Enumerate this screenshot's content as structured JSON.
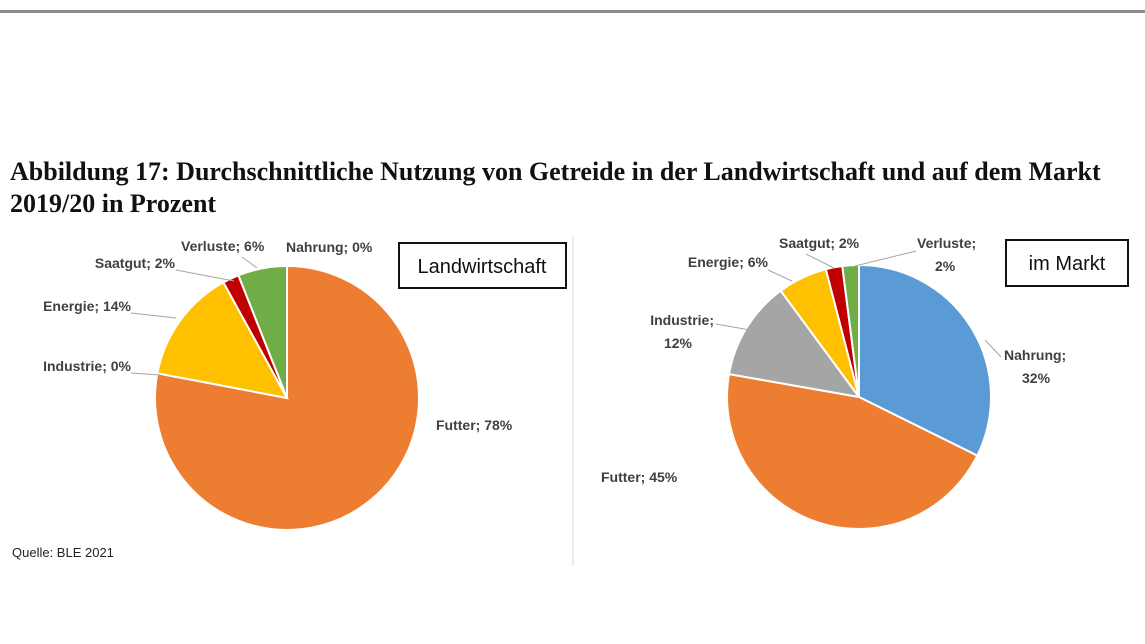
{
  "figure": {
    "title": "Abbildung 17: Durchschnittliche Nutzung von Getreide in der Landwirtschaft und auf dem Markt 2019/20 in Prozent",
    "source": "Quelle: BLE 2021"
  },
  "chart_data": [
    {
      "type": "pie",
      "title": "Landwirtschaft",
      "unit": "%",
      "slices": [
        {
          "name": "Nahrung",
          "value": 0,
          "color": "#5B9BD5"
        },
        {
          "name": "Futter",
          "value": 78,
          "color": "#ED7D31"
        },
        {
          "name": "Industrie",
          "value": 0,
          "color": "#A5A5A5"
        },
        {
          "name": "Energie",
          "value": 14,
          "color": "#FFC000"
        },
        {
          "name": "Saatgut",
          "value": 2,
          "color": "#C00000"
        },
        {
          "name": "Verluste",
          "value": 6,
          "color": "#70AD47"
        }
      ],
      "labels": [
        "Nahrung; 0%",
        "Futter; 78%",
        "Industrie; 0%",
        "Energie; 14%",
        "Saatgut; 2%",
        "Verluste; 6%"
      ]
    },
    {
      "type": "pie",
      "title": "im Markt",
      "unit": "%",
      "slices": [
        {
          "name": "Nahrung",
          "value": 32,
          "color": "#5B9BD5"
        },
        {
          "name": "Futter",
          "value": 45,
          "color": "#ED7D31"
        },
        {
          "name": "Industrie",
          "value": 12,
          "color": "#A5A5A5"
        },
        {
          "name": "Energie",
          "value": 6,
          "color": "#FFC000"
        },
        {
          "name": "Saatgut",
          "value": 2,
          "color": "#C00000"
        },
        {
          "name": "Verluste",
          "value": 2,
          "color": "#70AD47"
        }
      ],
      "labels": [
        [
          "Nahrung;",
          "32%"
        ],
        "Futter; 45%",
        [
          "Industrie;",
          "12%"
        ],
        "Energie; 6%",
        "Saatgut; 2%",
        [
          "Verluste;",
          "2%"
        ]
      ]
    }
  ]
}
